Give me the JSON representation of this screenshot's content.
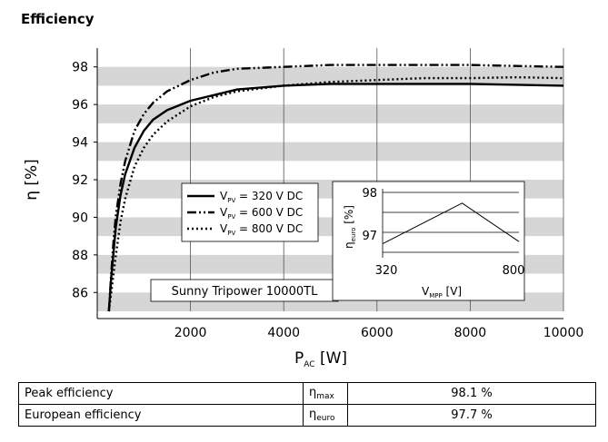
{
  "page": {
    "title": "Efficiency"
  },
  "chart_data": [
    {
      "type": "line",
      "xlabel": "P",
      "xlabel_sub": "AC",
      "xlabel_unit": " [W]",
      "ylabel": "η [%]",
      "xlim": [
        0,
        10000
      ],
      "ylim": [
        85,
        99
      ],
      "x_ticks": [
        2000,
        4000,
        6000,
        8000,
        10000
      ],
      "y_ticks": [
        86,
        88,
        90,
        92,
        94,
        96,
        98
      ],
      "grid": true,
      "banded_background": true,
      "legend_placement": "center",
      "annotation": "Sunny Tripower 10000TL",
      "series": [
        {
          "name": "V = 320 V DC",
          "name_sym": "V",
          "name_sub": "PV",
          "name_rest": " = 320 V DC",
          "style": "solid",
          "x": [
            250,
            300,
            400,
            500,
            600,
            800,
            1000,
            1200,
            1500,
            2000,
            2500,
            3000,
            4000,
            5000,
            6000,
            7000,
            8000,
            9000,
            10000
          ],
          "y": [
            85,
            86.8,
            89.5,
            91.2,
            92.3,
            93.7,
            94.6,
            95.2,
            95.7,
            96.2,
            96.5,
            96.8,
            97.0,
            97.1,
            97.1,
            97.1,
            97.1,
            97.05,
            97.0
          ]
        },
        {
          "name": "V = 600 V DC",
          "name_sym": "V",
          "name_sub": "PV",
          "name_rest": " = 600 V DC",
          "style": "dashdot",
          "x": [
            250,
            300,
            350,
            400,
            500,
            600,
            800,
            1000,
            1200,
            1500,
            2000,
            2500,
            3000,
            4000,
            5000,
            6000,
            7000,
            8000,
            9000,
            10000
          ],
          "y": [
            85,
            87.0,
            88.8,
            90.1,
            91.8,
            93.0,
            94.6,
            95.5,
            96.1,
            96.7,
            97.3,
            97.7,
            97.9,
            98.0,
            98.1,
            98.1,
            98.1,
            98.1,
            98.05,
            98.0
          ]
        },
        {
          "name": "V = 800 V DC",
          "name_sym": "V",
          "name_sub": "PV",
          "name_rest": " = 800 V DC",
          "style": "dotted",
          "x": [
            250,
            300,
            400,
            500,
            600,
            800,
            1000,
            1200,
            1500,
            2000,
            2500,
            3000,
            4000,
            5000,
            6000,
            7000,
            8000,
            9000,
            10000
          ],
          "y": [
            85,
            86.0,
            88.0,
            89.8,
            91.0,
            92.7,
            93.7,
            94.4,
            95.1,
            95.9,
            96.4,
            96.7,
            97.0,
            97.2,
            97.3,
            97.4,
            97.4,
            97.45,
            97.4
          ]
        }
      ]
    },
    {
      "type": "line",
      "xlabel": "V",
      "xlabel_sub": "MPP",
      "xlabel_unit": " [V]",
      "ylabel": "η",
      "ylabel_sub": "euro",
      "ylabel_unit": " [%]",
      "xlim": [
        320,
        800
      ],
      "ylim": [
        96.6,
        98.0
      ],
      "x_ticks": [
        320,
        800
      ],
      "y_ticks": [
        97,
        98
      ],
      "series": [
        {
          "x": [
            320,
            600,
            800
          ],
          "y": [
            96.8,
            97.75,
            96.85
          ]
        }
      ]
    }
  ],
  "table": {
    "rows": [
      {
        "label": "Peak efficiency",
        "sym": "η",
        "sub": "max",
        "value": "98.1 %"
      },
      {
        "label": "European efficiency",
        "sym": "η",
        "sub": "euro",
        "value": "97.7 %"
      }
    ]
  }
}
